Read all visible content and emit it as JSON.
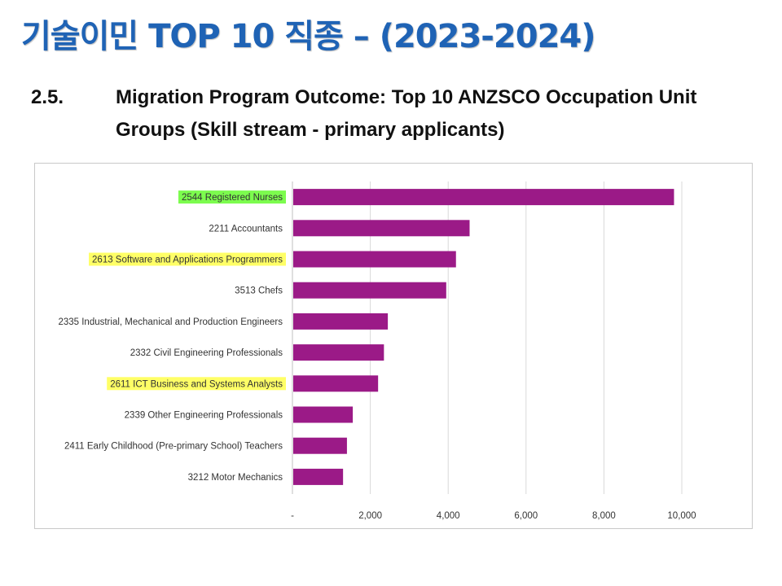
{
  "slide": {
    "title": "기술이민 TOP 10 직종 – (2023-2024)"
  },
  "section": {
    "number": "2.5.",
    "heading": "Migration Program Outcome: Top 10 ANZSCO Occupation Unit Groups (Skill stream - primary applicants)"
  },
  "colors": {
    "title": "#1f63b5",
    "bar": "#9b1a87",
    "highlight_green": "#7CFC4E",
    "highlight_yellow": "#FFFF66",
    "grid": "#d9d9d9"
  },
  "chart_data": {
    "type": "bar",
    "orientation": "horizontal",
    "title": "",
    "xlabel": "",
    "ylabel": "",
    "categories": [
      "2544 Registered Nurses",
      "2211 Accountants",
      "2613 Software and Applications Programmers",
      "3513 Chefs",
      "2335 Industrial, Mechanical and Production Engineers",
      "2332 Civil Engineering Professionals",
      "2611 ICT Business and Systems Analysts",
      "2339 Other Engineering Professionals",
      "2411 Early Childhood (Pre-primary School) Teachers",
      "3212 Motor Mechanics"
    ],
    "values": [
      9800,
      4550,
      4200,
      3950,
      2450,
      2350,
      2200,
      1550,
      1400,
      1300
    ],
    "highlights": [
      "green",
      "none",
      "yellow",
      "none",
      "none",
      "none",
      "yellow",
      "none",
      "none",
      "none"
    ],
    "xlim": [
      0,
      10000
    ],
    "xticks": [
      0,
      2000,
      4000,
      6000,
      8000,
      10000
    ],
    "xtick_labels": [
      "-",
      "2,000",
      "4,000",
      "6,000",
      "8,000",
      "10,000"
    ],
    "grid": true,
    "legend": "none"
  }
}
